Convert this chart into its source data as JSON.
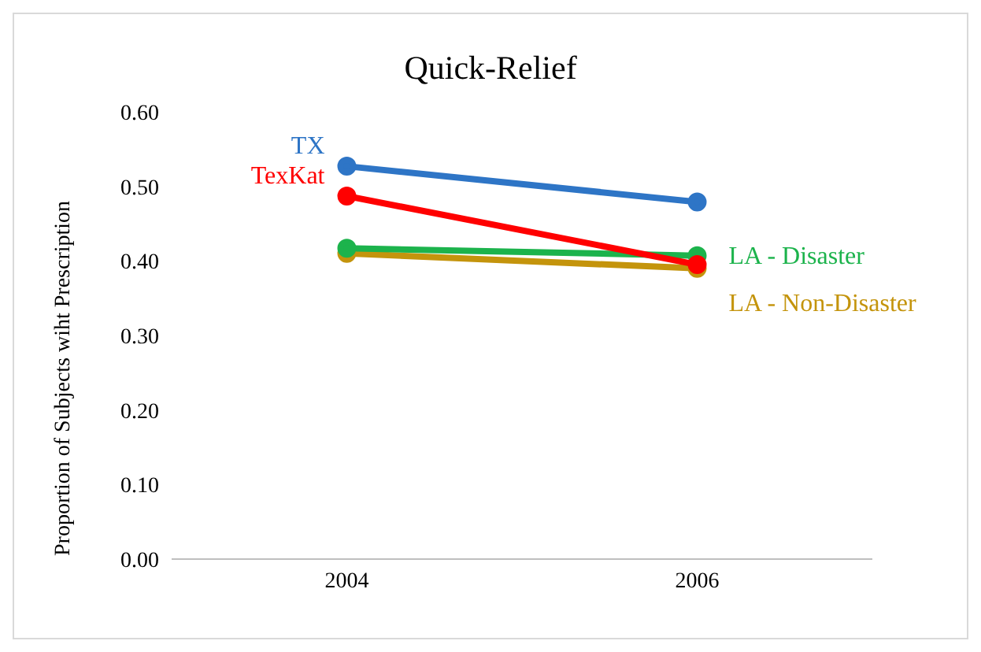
{
  "chart_data": {
    "type": "line",
    "title": "Quick-Relief",
    "ylabel": "Proportion of Subjects wiht Prescription",
    "x": [
      2004,
      2006
    ],
    "xlim": [
      2003,
      2007
    ],
    "xticks": [
      2004,
      2006
    ],
    "ylim": [
      0,
      0.6
    ],
    "yticks": [
      {
        "value": 0,
        "label": "0.00"
      },
      {
        "value": 0.1,
        "label": "0.10"
      },
      {
        "value": 0.2,
        "label": "0.20"
      },
      {
        "value": 0.3,
        "label": "0.30"
      },
      {
        "value": 0.4,
        "label": "0.40"
      },
      {
        "value": 0.5,
        "label": "0.50"
      },
      {
        "value": 0.6,
        "label": "0.60"
      }
    ],
    "grid": false,
    "legend": false,
    "marker": "circle",
    "line_style": "solid",
    "series": [
      {
        "name": "TX",
        "color": "#2e75c6",
        "values": [
          0.527,
          0.479
        ]
      },
      {
        "name": "TexKat",
        "color": "#ff0000",
        "values": [
          0.487,
          0.395
        ]
      },
      {
        "name": "LA - Disaster",
        "color": "#1cb34c",
        "values": [
          0.417,
          0.407
        ]
      },
      {
        "name": "LA - Non-Disaster",
        "color": "#c4940c",
        "values": [
          0.41,
          0.39
        ]
      }
    ]
  }
}
